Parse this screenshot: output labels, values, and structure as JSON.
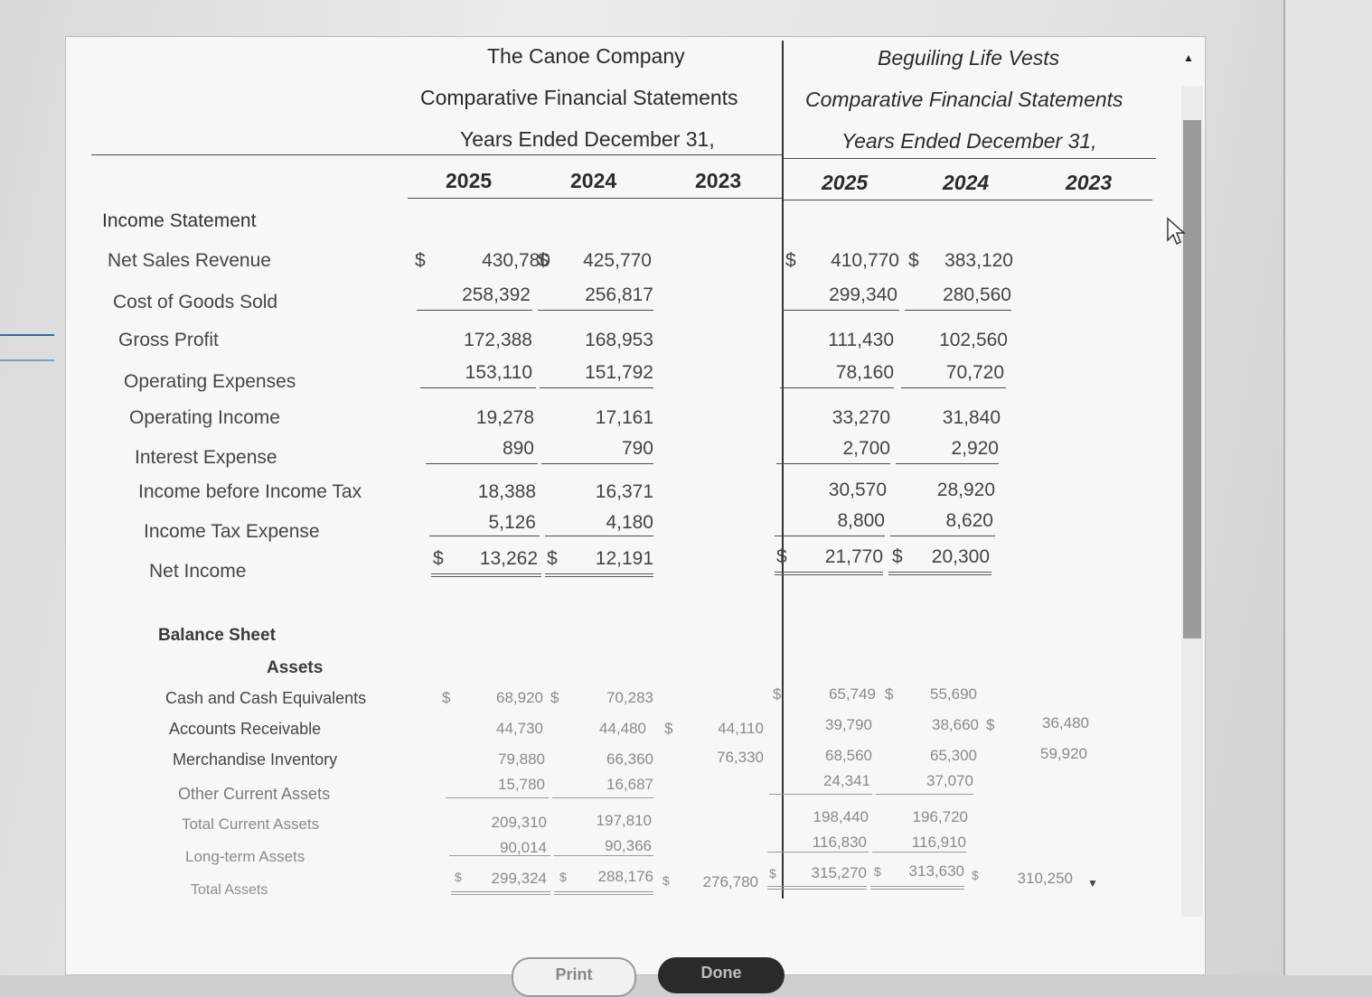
{
  "company_a": {
    "name": "The Canoe Company",
    "subtitle": "Comparative Financial Statements",
    "period": "Years Ended December 31,",
    "years": [
      "2025",
      "2024",
      "2023"
    ]
  },
  "company_b": {
    "name": "Beguiling Life Vests",
    "subtitle": "Comparative Financial Statements",
    "period": "Years Ended December 31,",
    "years": [
      "2025",
      "2024",
      "2023"
    ]
  },
  "income_statement": {
    "heading": "Income Statement",
    "rows": [
      {
        "label": "Net Sales Revenue",
        "a": [
          "$",
          "430,780",
          "$",
          "425,770"
        ],
        "b": [
          "$",
          "410,770",
          "$",
          "383,120"
        ]
      },
      {
        "label": "Cost of Goods Sold",
        "a": [
          "258,392",
          "256,817"
        ],
        "b": [
          "299,340",
          "280,560"
        ]
      },
      {
        "label": "Gross Profit",
        "a": [
          "172,388",
          "168,953"
        ],
        "b": [
          "111,430",
          "102,560"
        ]
      },
      {
        "label": "Operating Expenses",
        "a": [
          "153,110",
          "151,792"
        ],
        "b": [
          "78,160",
          "70,720"
        ]
      },
      {
        "label": "Operating Income",
        "a": [
          "19,278",
          "17,161"
        ],
        "b": [
          "33,270",
          "31,840"
        ]
      },
      {
        "label": "Interest Expense",
        "a": [
          "890",
          "790"
        ],
        "b": [
          "2,700",
          "2,920"
        ]
      },
      {
        "label": "Income before Income Tax",
        "a": [
          "18,388",
          "16,371"
        ],
        "b": [
          "30,570",
          "28,920"
        ]
      },
      {
        "label": "Income Tax Expense",
        "a": [
          "5,126",
          "4,180"
        ],
        "b": [
          "8,800",
          "8,620"
        ]
      },
      {
        "label": "Net Income",
        "a": [
          "$",
          "13,262",
          "$",
          "12,191"
        ],
        "b": [
          "$",
          "21,770",
          "$",
          "20,300"
        ]
      }
    ]
  },
  "balance_sheet": {
    "heading": "Balance Sheet",
    "subheading": "Assets",
    "rows": [
      {
        "label": "Cash and Cash Equivalents",
        "a": [
          "$",
          "68,920",
          "$",
          "70,283"
        ],
        "b": [
          "$",
          "65,749",
          "$",
          "55,690"
        ]
      },
      {
        "label": "Accounts Receivable",
        "a": [
          "44,730",
          "44,480",
          "$",
          "44,110"
        ],
        "b": [
          "39,790",
          "38,660",
          "$",
          "36,480"
        ]
      },
      {
        "label": "Merchandise Inventory",
        "a": [
          "79,880",
          "66,360",
          "76,330"
        ],
        "b": [
          "68,560",
          "65,300",
          "59,920"
        ]
      },
      {
        "label": "Other Current Assets",
        "a": [
          "15,780",
          "16,687"
        ],
        "b": [
          "24,341",
          "37,070"
        ]
      },
      {
        "label": "Total Current Assets",
        "a": [
          "209,310",
          "197,810"
        ],
        "b": [
          "198,440",
          "196,720"
        ]
      },
      {
        "label": "Long-term Assets",
        "a": [
          "90,014",
          "90,366"
        ],
        "b": [
          "116,830",
          "116,910"
        ]
      },
      {
        "label": "Total Assets",
        "a": [
          "$",
          "299,324",
          "$",
          "288,176",
          "$",
          "276,780"
        ],
        "b": [
          "$",
          "315,270",
          "$",
          "313,630",
          "$",
          "310,250"
        ]
      }
    ]
  },
  "buttons": {
    "print": "Print",
    "done": "Done"
  },
  "colors": {
    "accent": "#2e6fa0",
    "done_button": "#2a2a2a"
  }
}
